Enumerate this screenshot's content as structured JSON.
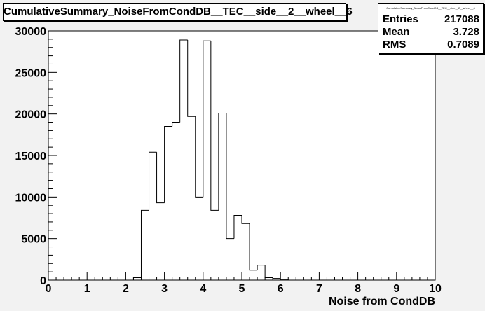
{
  "chart_data": {
    "type": "bar",
    "title": "CumulativeSummary_NoiseFromCondDB__TEC__side__2__wheel__6",
    "xlabel": "Noise from CondDB",
    "ylabel": "",
    "xlim": [
      0,
      10
    ],
    "ylim": [
      0,
      30000
    ],
    "x_ticks": [
      "0",
      "1",
      "2",
      "3",
      "4",
      "5",
      "6",
      "7",
      "8",
      "9",
      "10"
    ],
    "y_ticks": [
      "0",
      "5000",
      "10000",
      "15000",
      "20000",
      "25000",
      "30000"
    ],
    "bin_width": 0.2,
    "bins_x0": [
      2.2,
      2.4,
      2.6,
      2.8,
      3.0,
      3.2,
      3.4,
      3.6,
      3.8,
      4.0,
      4.2,
      4.4,
      4.6,
      4.8,
      5.0,
      5.2,
      5.4,
      5.6,
      5.8,
      6.0
    ],
    "values": [
      300,
      8400,
      15400,
      9300,
      18500,
      19000,
      28900,
      19700,
      10000,
      28800,
      8400,
      20100,
      5000,
      7800,
      6800,
      1200,
      1800,
      300,
      200,
      100
    ],
    "grid": false,
    "legend": "none",
    "stats": {
      "header": "CumulativeSummary_NoiseFromCondDB__TEC__side__2__wheel__6",
      "rows": [
        {
          "label": "Entries",
          "value": "217088"
        },
        {
          "label": "Mean",
          "value": "3.728"
        },
        {
          "label": "RMS",
          "value": "0.7089"
        }
      ]
    }
  }
}
